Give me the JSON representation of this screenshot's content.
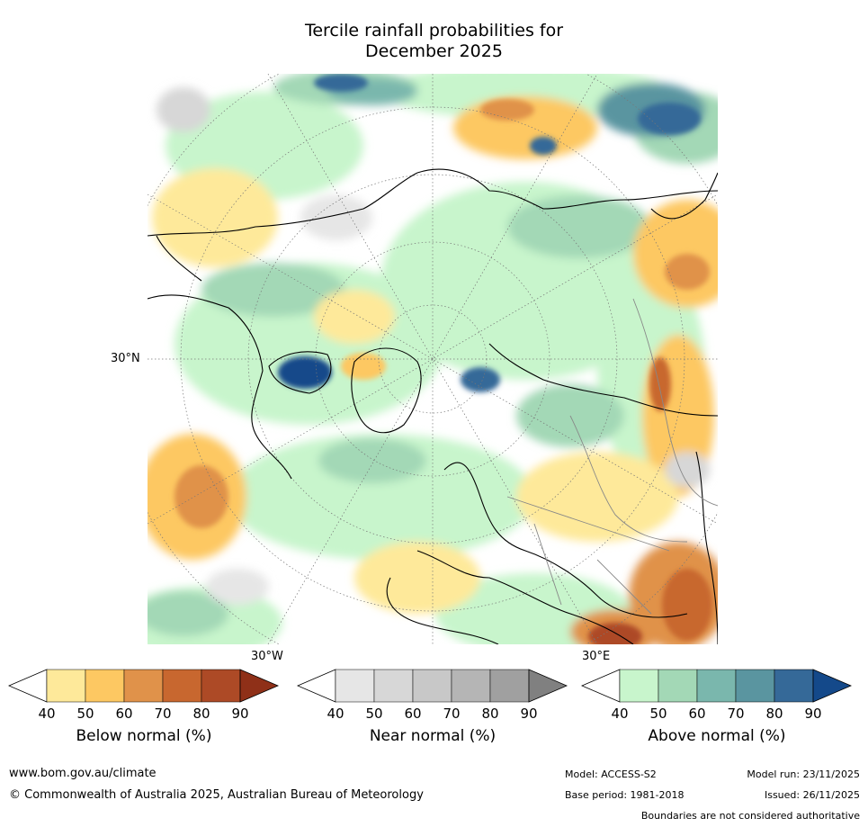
{
  "title_line1": "Tercile rainfall probabilities for",
  "title_line2": "December 2025",
  "map_labels": {
    "lat_30n": "30°N",
    "lon_30w": "30°W",
    "lon_30e": "30°E"
  },
  "colorbars": [
    {
      "name": "below",
      "title": "Below normal (%)",
      "ticks": [
        "40",
        "50",
        "60",
        "70",
        "80",
        "90"
      ],
      "colors": [
        "#ffffff",
        "#fee99a",
        "#fdc862",
        "#e0924a",
        "#c8672f",
        "#ad4a26",
        "#8f3018"
      ]
    },
    {
      "name": "near",
      "title": "Near normal (%)",
      "ticks": [
        "40",
        "50",
        "60",
        "70",
        "80",
        "90"
      ],
      "colors": [
        "#ffffff",
        "#e6e6e6",
        "#d7d7d7",
        "#c8c8c8",
        "#b5b5b5",
        "#a0a0a0",
        "#808080"
      ]
    },
    {
      "name": "above",
      "title": "Above normal (%)",
      "ticks": [
        "40",
        "50",
        "60",
        "70",
        "80",
        "90"
      ],
      "colors": [
        "#ffffff",
        "#c8f5cc",
        "#a3d8b6",
        "#7ab7ad",
        "#5a95a0",
        "#356998",
        "#14498a"
      ]
    }
  ],
  "footer": {
    "url": "www.bom.gov.au/climate",
    "copyright": "© Commonwealth of Australia 2025, Australian Bureau of Meteorology",
    "model": "Model: ACCESS-S2",
    "base_period": "Base period: 1981-2018",
    "model_run": "Model run: 23/11/2025",
    "issued": "Issued: 26/11/2025",
    "disclaimer": "Boundaries are not considered authoritative"
  }
}
